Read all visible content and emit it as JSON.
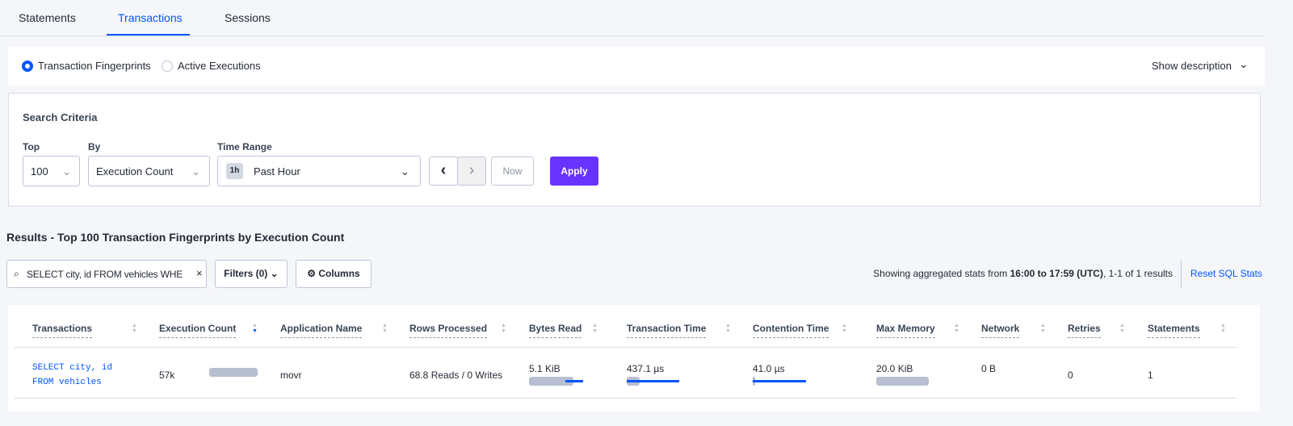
{
  "tabs": [
    {
      "label": "Statements"
    },
    {
      "label": "Transactions",
      "active": true
    },
    {
      "label": "Sessions"
    }
  ],
  "view": {
    "options": [
      {
        "label": "Transaction Fingerprints",
        "selected": true
      },
      {
        "label": "Active Executions",
        "selected": false
      }
    ],
    "show_description": "Show description"
  },
  "search": {
    "title": "Search Criteria",
    "top_label": "Top",
    "top_value": "100",
    "by_label": "By",
    "by_value": "Execution Count",
    "time_label": "Time Range",
    "time_badge": "1h",
    "time_value": "Past Hour",
    "now": "Now",
    "apply": "Apply"
  },
  "results": {
    "title": "Results - Top 100 Transaction Fingerprints by Execution Count",
    "search_value": "SELECT city, id FROM vehicles WHE",
    "filters": "Filters (0)",
    "columns": "Columns",
    "stats_prefix": "Showing aggregated stats from ",
    "stats_range": "16:00 to 17:59 (UTC)",
    "stats_suffix": ", 1-1 of 1 results",
    "reset": "Reset SQL Stats"
  },
  "table": {
    "columns": [
      "Transactions",
      "Execution Count",
      "Application Name",
      "Rows Processed",
      "Bytes Read",
      "Transaction Time",
      "Contention Time",
      "Max Memory",
      "Network",
      "Retries",
      "Statements"
    ],
    "sorted_column": "Execution Count",
    "sort_direction": "desc",
    "rows": [
      {
        "transaction_line1": "SELECT city, id",
        "transaction_line2": "FROM vehicles",
        "execution_count": "57k",
        "application": "movr",
        "rows_processed": "68.8 Reads / 0 Writes",
        "bytes_read": "5.1 KiB",
        "transaction_time": "437.1 µs",
        "contention_time": "41.0 µs",
        "max_memory": "20.0 KiB",
        "network": "0 B",
        "retries": "0",
        "statements": "1"
      }
    ]
  },
  "colors": {
    "accent": "#0055ff",
    "apply": "#6933ff",
    "bar": "#b8bfd1"
  }
}
